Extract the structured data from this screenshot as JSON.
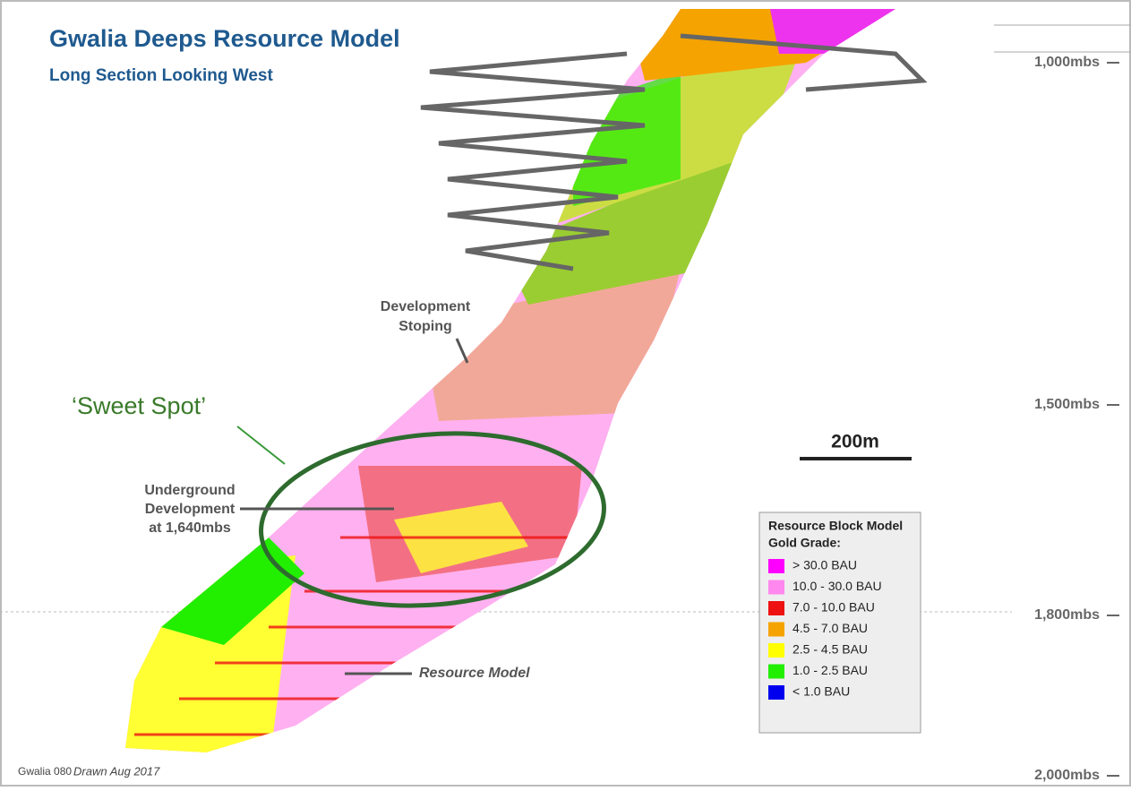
{
  "header": {
    "title": "Gwalia Deeps Resource Model",
    "subtitle": "Long Section Looking West"
  },
  "depth_labels": [
    "1,000mbs",
    "1,500mbs",
    "1,800mbs",
    "2,000mbs"
  ],
  "annotations": {
    "development_stoping": [
      "Development",
      "Stoping"
    ],
    "underground_development": [
      "Underground",
      "Development",
      "at 1,640mbs"
    ],
    "resource_model": "Resource Model",
    "sweet_spot": "‘Sweet Spot’",
    "scale_bar": "200m"
  },
  "legend": {
    "title": [
      "Resource Block Model",
      "Gold Grade:"
    ],
    "items": [
      {
        "label": "> 30.0 BAU",
        "color": "#ff00ff"
      },
      {
        "label": "10.0 - 30.0 BAU",
        "color": "#ff88ee"
      },
      {
        "label": "7.0 - 10.0 BAU",
        "color": "#ee1111"
      },
      {
        "label": "4.5 - 7.0 BAU",
        "color": "#f5a300"
      },
      {
        "label": "2.5 - 4.5 BAU",
        "color": "#ffff00"
      },
      {
        "label": "1.0 - 2.5 BAU",
        "color": "#22ee00"
      },
      {
        "label": "< 1.0 BAU",
        "color": "#0000ee"
      }
    ]
  },
  "footer": {
    "code": "Gwalia 080",
    "drawn": "Drawn Aug 2017"
  }
}
